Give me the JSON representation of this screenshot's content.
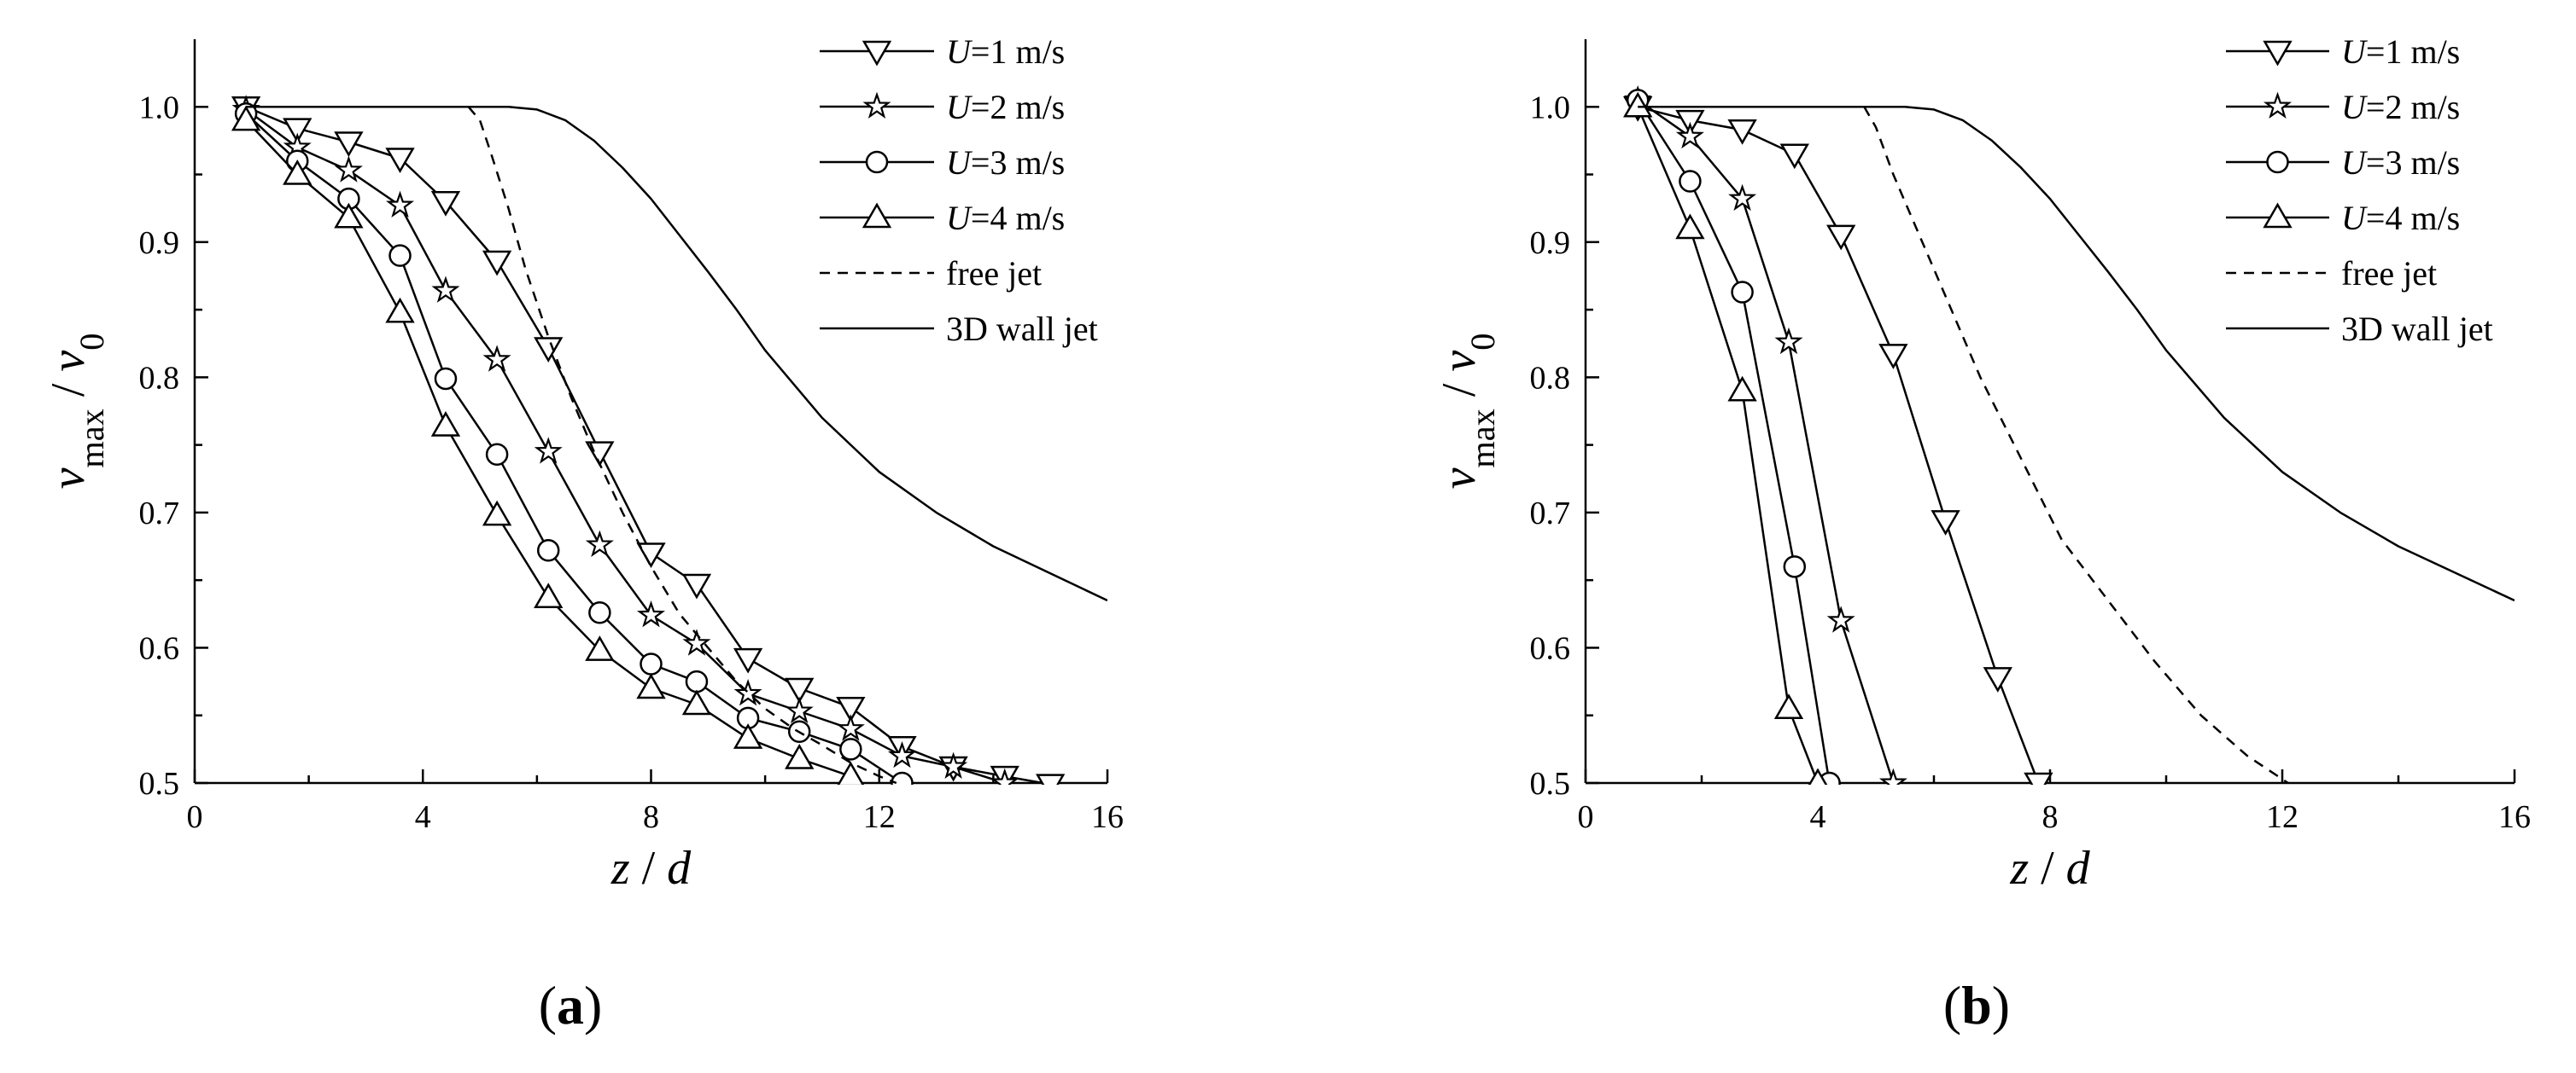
{
  "chart_data": [
    {
      "panel": "(a)",
      "panel_letter": "a",
      "type": "line",
      "xlabel": "z / d",
      "ylabel": "v_max / v_0",
      "xlim": [
        0,
        16
      ],
      "ylim": [
        0.5,
        1.05
      ],
      "xticks": [
        0,
        4,
        8,
        12,
        16
      ],
      "yticks": [
        0.5,
        0.6,
        0.7,
        0.8,
        0.9,
        1.0
      ],
      "legend_position": "top-right",
      "grid": false,
      "series": [
        {
          "name": "U=1 m/s",
          "marker": "triangle-down",
          "style": "solid",
          "x": [
            0.9,
            1.8,
            2.7,
            3.6,
            4.4,
            5.3,
            6.2,
            7.1,
            8.0,
            8.8,
            9.7,
            10.6,
            11.5,
            12.4,
            13.3,
            14.2,
            15.0
          ],
          "y": [
            1.0,
            0.984,
            0.974,
            0.962,
            0.93,
            0.886,
            0.822,
            0.745,
            0.67,
            0.647,
            0.592,
            0.57,
            0.556,
            0.527,
            0.512,
            0.505,
            0.499
          ]
        },
        {
          "name": "U=2 m/s",
          "marker": "star",
          "style": "solid",
          "x": [
            0.9,
            1.8,
            2.7,
            3.6,
            4.4,
            5.3,
            6.2,
            7.1,
            8.0,
            8.8,
            9.7,
            10.6,
            11.5,
            12.4,
            13.3,
            14.2
          ],
          "y": [
            0.998,
            0.97,
            0.953,
            0.927,
            0.864,
            0.813,
            0.745,
            0.676,
            0.624,
            0.603,
            0.566,
            0.553,
            0.54,
            0.52,
            0.512,
            0.5
          ]
        },
        {
          "name": "U=3 m/s",
          "marker": "circle",
          "style": "solid",
          "x": [
            0.9,
            1.8,
            2.7,
            3.6,
            4.4,
            5.3,
            6.2,
            7.1,
            8.0,
            8.8,
            9.7,
            10.6,
            11.5,
            12.4
          ],
          "y": [
            0.995,
            0.96,
            0.932,
            0.89,
            0.799,
            0.743,
            0.672,
            0.626,
            0.588,
            0.575,
            0.548,
            0.538,
            0.525,
            0.5
          ]
        },
        {
          "name": "U=4 m/s",
          "marker": "triangle-up",
          "style": "solid",
          "x": [
            0.9,
            1.8,
            2.7,
            3.6,
            4.4,
            5.3,
            6.2,
            7.1,
            8.0,
            8.8,
            9.7,
            10.6,
            11.5
          ],
          "y": [
            0.99,
            0.95,
            0.918,
            0.848,
            0.764,
            0.698,
            0.637,
            0.598,
            0.57,
            0.558,
            0.533,
            0.518,
            0.505
          ]
        },
        {
          "name": "free jet",
          "marker": "none",
          "style": "dashed",
          "x": [
            4.8,
            5.0,
            5.2,
            5.5,
            5.8,
            6.2,
            6.6,
            7.0,
            7.5,
            8.0,
            8.5,
            9.0,
            9.5,
            10.0,
            10.5,
            11.0,
            11.5,
            12.0,
            12.3
          ],
          "y": [
            1.0,
            0.99,
            0.965,
            0.925,
            0.88,
            0.83,
            0.785,
            0.745,
            0.7,
            0.66,
            0.625,
            0.6,
            0.575,
            0.555,
            0.54,
            0.528,
            0.515,
            0.505,
            0.5
          ]
        },
        {
          "name": "3D wall jet",
          "marker": "none",
          "style": "solid",
          "x": [
            0.9,
            2,
            3,
            4,
            5,
            5.5,
            6.0,
            6.5,
            7.0,
            7.5,
            8.0,
            8.5,
            9.0,
            9.5,
            10.0,
            11.0,
            12.0,
            13.0,
            14.0,
            15.0,
            16.0
          ],
          "y": [
            1.0,
            1.0,
            1.0,
            1.0,
            1.0,
            1.0,
            0.998,
            0.99,
            0.975,
            0.955,
            0.932,
            0.905,
            0.878,
            0.85,
            0.82,
            0.77,
            0.73,
            0.7,
            0.675,
            0.655,
            0.635
          ]
        }
      ]
    },
    {
      "panel": "(b)",
      "panel_letter": "b",
      "type": "line",
      "xlabel": "z / d",
      "ylabel": "v_max / v_0",
      "xlim": [
        0,
        16
      ],
      "ylim": [
        0.5,
        1.05
      ],
      "xticks": [
        0,
        4,
        8,
        12,
        16
      ],
      "yticks": [
        0.5,
        0.6,
        0.7,
        0.8,
        0.9,
        1.0
      ],
      "legend_position": "top-right",
      "grid": false,
      "series": [
        {
          "name": "U=1 m/s",
          "marker": "triangle-down",
          "style": "solid",
          "x": [
            0.9,
            1.8,
            2.7,
            3.6,
            4.4,
            5.3,
            6.2,
            7.1,
            7.8
          ],
          "y": [
            1.0,
            0.99,
            0.983,
            0.965,
            0.905,
            0.817,
            0.694,
            0.578,
            0.5
          ]
        },
        {
          "name": "U=2 m/s",
          "marker": "star",
          "style": "solid",
          "x": [
            0.9,
            1.8,
            2.7,
            3.5,
            4.4,
            5.3
          ],
          "y": [
            1.005,
            0.978,
            0.932,
            0.826,
            0.62,
            0.5
          ]
        },
        {
          "name": "U=3 m/s",
          "marker": "circle",
          "style": "solid",
          "x": [
            0.9,
            1.8,
            2.7,
            3.6,
            4.2
          ],
          "y": [
            1.005,
            0.945,
            0.863,
            0.66,
            0.5
          ]
        },
        {
          "name": "U=4 m/s",
          "marker": "triangle-up",
          "style": "solid",
          "x": [
            0.9,
            1.8,
            2.7,
            3.5,
            4.0
          ],
          "y": [
            1.0,
            0.91,
            0.79,
            0.555,
            0.5
          ]
        },
        {
          "name": "free jet",
          "marker": "none",
          "style": "dashed",
          "x": [
            4.8,
            5.0,
            5.3,
            5.7,
            6.2,
            6.8,
            7.5,
            8.2,
            9.0,
            9.8,
            10.6,
            11.4,
            12.1
          ],
          "y": [
            1.0,
            0.985,
            0.95,
            0.91,
            0.86,
            0.8,
            0.74,
            0.68,
            0.635,
            0.59,
            0.55,
            0.52,
            0.5
          ]
        },
        {
          "name": "3D wall jet",
          "marker": "none",
          "style": "solid",
          "x": [
            0.9,
            2,
            3,
            4,
            5,
            5.5,
            6.0,
            6.5,
            7.0,
            7.5,
            8.0,
            8.5,
            9.0,
            9.5,
            10.0,
            11.0,
            12.0,
            13.0,
            14.0,
            15.0,
            16.0
          ],
          "y": [
            1.0,
            1.0,
            1.0,
            1.0,
            1.0,
            1.0,
            0.998,
            0.99,
            0.975,
            0.955,
            0.932,
            0.905,
            0.878,
            0.85,
            0.82,
            0.77,
            0.73,
            0.7,
            0.675,
            0.655,
            0.635
          ]
        }
      ]
    }
  ]
}
